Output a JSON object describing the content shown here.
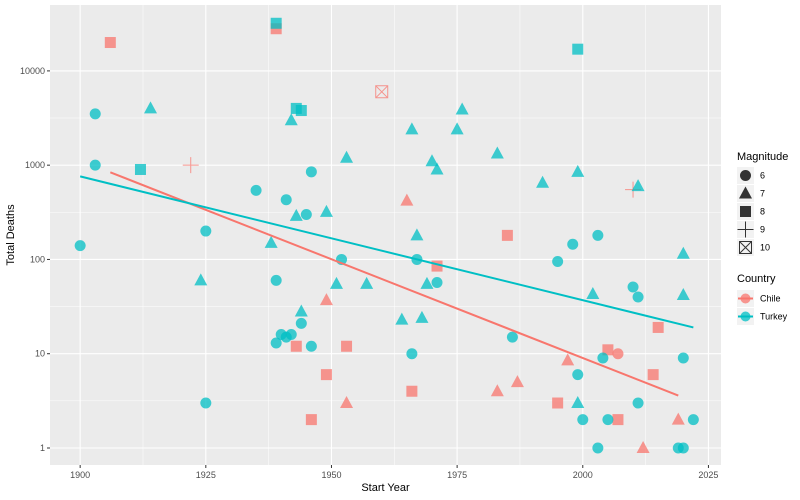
{
  "chart_data": {
    "type": "scatter",
    "xlabel": "Start Year",
    "ylabel": "Total Deaths",
    "xlim": [
      1894,
      2027.5
    ],
    "ylog": true,
    "ylim": [
      0.66,
      50000
    ],
    "x_ticks": [
      1900,
      1925,
      1950,
      1975,
      2000,
      2025
    ],
    "y_ticks": [
      1,
      10,
      100,
      1000,
      10000
    ],
    "y_tick_labels": [
      "1",
      "10",
      "100",
      "1000",
      "10000"
    ],
    "grid": true,
    "legend_position": "right",
    "colors": {
      "Chile": "#F8766D",
      "Turkey": "#00BFC4",
      "panel": "#EBEBEB",
      "grid": "#FFFFFF"
    },
    "legends": {
      "magnitude": {
        "title": "Magnitude",
        "entries": [
          {
            "label": "6",
            "shape": "circle"
          },
          {
            "label": "7",
            "shape": "triangle"
          },
          {
            "label": "8",
            "shape": "square"
          },
          {
            "label": "9",
            "shape": "plus"
          },
          {
            "label": "10",
            "shape": "boxcross"
          }
        ]
      },
      "country": {
        "title": "Country",
        "entries": [
          {
            "label": "Chile",
            "color_key": "Chile"
          },
          {
            "label": "Turkey",
            "color_key": "Turkey"
          }
        ]
      }
    },
    "series": [
      {
        "name": "Chile",
        "trend": [
          [
            1906,
            840
          ],
          [
            2019,
            3.6
          ]
        ],
        "points": [
          [
            1906,
            20000,
            "8"
          ],
          [
            1939,
            28000,
            "8"
          ],
          [
            1922,
            1000,
            "9"
          ],
          [
            1960,
            6000,
            "10"
          ],
          [
            1965,
            420,
            "7"
          ],
          [
            1985,
            180,
            "8"
          ],
          [
            1971,
            85,
            "8"
          ],
          [
            1949,
            37,
            "7"
          ],
          [
            1943,
            12,
            "8"
          ],
          [
            1953,
            12,
            "8"
          ],
          [
            1949,
            6,
            "8"
          ],
          [
            1953,
            3,
            "7"
          ],
          [
            1946,
            2,
            "8"
          ],
          [
            1966,
            4,
            "8"
          ],
          [
            1983,
            4,
            "7"
          ],
          [
            1987,
            5,
            "7"
          ],
          [
            1995,
            3,
            "8"
          ],
          [
            1997,
            8.5,
            "7"
          ],
          [
            2005,
            11,
            "8"
          ],
          [
            2007,
            10,
            "6"
          ],
          [
            2010,
            550,
            "9"
          ],
          [
            2014,
            6,
            "8"
          ],
          [
            2015,
            19,
            "8"
          ],
          [
            2007,
            2,
            "8"
          ],
          [
            2012,
            1,
            "7"
          ],
          [
            2019,
            2,
            "7"
          ]
        ]
      },
      {
        "name": "Turkey",
        "trend": [
          [
            1900,
            760
          ],
          [
            2022,
            19
          ]
        ],
        "points": [
          [
            1900,
            140,
            "6"
          ],
          [
            1903,
            3500,
            "6"
          ],
          [
            1903,
            1000,
            "6"
          ],
          [
            1912,
            900,
            "8"
          ],
          [
            1914,
            4000,
            "7"
          ],
          [
            1924,
            60,
            "7"
          ],
          [
            1925,
            200,
            "6"
          ],
          [
            1925,
            3,
            "6"
          ],
          [
            1935,
            540,
            "6"
          ],
          [
            1938,
            150,
            "7"
          ],
          [
            1939,
            32000,
            "8"
          ],
          [
            1939,
            60,
            "6"
          ],
          [
            1939,
            13,
            "6"
          ],
          [
            1940,
            16,
            "6"
          ],
          [
            1941,
            430,
            "6"
          ],
          [
            1941,
            15,
            "6"
          ],
          [
            1942,
            3000,
            "7"
          ],
          [
            1942,
            16,
            "6"
          ],
          [
            1943,
            4000,
            "8"
          ],
          [
            1943,
            290,
            "7"
          ],
          [
            1944,
            3800,
            "8"
          ],
          [
            1944,
            28,
            "7"
          ],
          [
            1944,
            21,
            "6"
          ],
          [
            1945,
            300,
            "6"
          ],
          [
            1946,
            850,
            "6"
          ],
          [
            1946,
            12,
            "6"
          ],
          [
            1949,
            320,
            "7"
          ],
          [
            1951,
            55,
            "7"
          ],
          [
            1952,
            100,
            "6"
          ],
          [
            1953,
            1200,
            "7"
          ],
          [
            1957,
            55,
            "7"
          ],
          [
            1964,
            23,
            "7"
          ],
          [
            1966,
            2400,
            "7"
          ],
          [
            1966,
            10,
            "6"
          ],
          [
            1967,
            180,
            "7"
          ],
          [
            1967,
            100,
            "6"
          ],
          [
            1968,
            24,
            "7"
          ],
          [
            1969,
            55,
            "7"
          ],
          [
            1970,
            1100,
            "7"
          ],
          [
            1971,
            900,
            "7"
          ],
          [
            1971,
            57,
            "6"
          ],
          [
            1975,
            2400,
            "7"
          ],
          [
            1976,
            3900,
            "7"
          ],
          [
            1983,
            1330,
            "7"
          ],
          [
            1986,
            15,
            "6"
          ],
          [
            1992,
            650,
            "7"
          ],
          [
            1995,
            95,
            "6"
          ],
          [
            1998,
            145,
            "6"
          ],
          [
            1999,
            17000,
            "8"
          ],
          [
            1999,
            850,
            "7"
          ],
          [
            1999,
            6,
            "6"
          ],
          [
            1999,
            3,
            "7"
          ],
          [
            2000,
            2,
            "6"
          ],
          [
            2002,
            43,
            "7"
          ],
          [
            2003,
            180,
            "6"
          ],
          [
            2003,
            1,
            "6"
          ],
          [
            2004,
            9,
            "6"
          ],
          [
            2005,
            2,
            "6"
          ],
          [
            2010,
            51,
            "6"
          ],
          [
            2011,
            600,
            "7"
          ],
          [
            2011,
            40,
            "6"
          ],
          [
            2011,
            3,
            "6"
          ],
          [
            2019,
            1,
            "6"
          ],
          [
            2020,
            115,
            "7"
          ],
          [
            2020,
            42,
            "7"
          ],
          [
            2020,
            9,
            "6"
          ],
          [
            2020,
            1,
            "6"
          ],
          [
            2022,
            2,
            "6"
          ]
        ]
      }
    ]
  }
}
